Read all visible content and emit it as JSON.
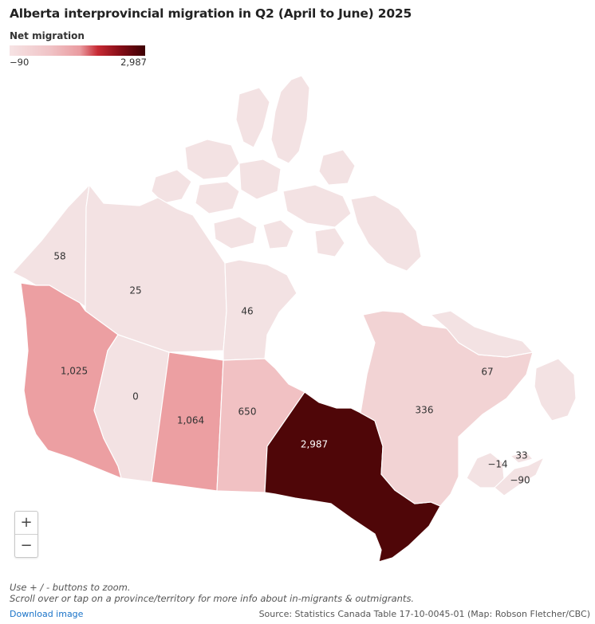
{
  "title": "Alberta interprovincial migration in Q2 (April to June) 2025",
  "legend": {
    "title": "Net migration",
    "min_label": "−90",
    "max_label": "2,987",
    "min_value": -90,
    "max_value": 2987
  },
  "regions": [
    {
      "name": "Yukon",
      "value": 58,
      "label": "58",
      "color": "#f3e2e3"
    },
    {
      "name": "Northwest Territories",
      "value": 25,
      "label": "25",
      "color": "#f3e2e3"
    },
    {
      "name": "Nunavut",
      "value": 46,
      "label": "46",
      "color": "#f3e2e3"
    },
    {
      "name": "British Columbia",
      "value": 1025,
      "label": "1,025",
      "color": "#ec9fa2"
    },
    {
      "name": "Alberta",
      "value": 0,
      "label": "0",
      "color": "#f3e2e3"
    },
    {
      "name": "Saskatchewan",
      "value": 1064,
      "label": "1,064",
      "color": "#ec9fa2"
    },
    {
      "name": "Manitoba",
      "value": 650,
      "label": "650",
      "color": "#f1c1c3"
    },
    {
      "name": "Ontario",
      "value": 2987,
      "label": "2,987",
      "color": "#4f0608"
    },
    {
      "name": "Quebec",
      "value": 336,
      "label": "336",
      "color": "#f2d3d4"
    },
    {
      "name": "Newfoundland and Labrador",
      "value": 67,
      "label": "67",
      "color": "#f3e2e3"
    },
    {
      "name": "New Brunswick",
      "value": -14,
      "label": "−14",
      "color": "#f3e2e3"
    },
    {
      "name": "Prince Edward Island",
      "value": 33,
      "label": "33",
      "color": "#f3e2e3"
    },
    {
      "name": "Nova Scotia",
      "value": -90,
      "label": "−90",
      "color": "#f3e2e3"
    }
  ],
  "zoom": {
    "in_label": "+",
    "out_label": "−"
  },
  "notes": [
    "Use + / - buttons to zoom.",
    "Scroll over or tap on a province/territory for more info about in-migrants & outmigrants."
  ],
  "download_label": "Download image",
  "source": "Source: Statistics Canada Table 17-10-0045-01 (Map: Robson Fletcher/CBC)"
}
